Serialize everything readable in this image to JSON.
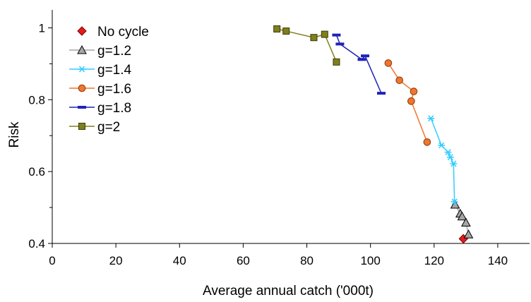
{
  "chart_data": {
    "type": "scatter",
    "title": "",
    "xlabel": "Average annual catch ('000t)",
    "ylabel": "Risk",
    "xlim": [
      0,
      150
    ],
    "ylim": [
      0.4,
      1.05
    ],
    "xticks": [
      0,
      20,
      40,
      60,
      80,
      100,
      120,
      140
    ],
    "xtick_labels": [
      "0",
      "20",
      "40",
      "60",
      "80",
      "100",
      "120",
      "140"
    ],
    "yticks": [
      0.4,
      0.6,
      0.8,
      1.0
    ],
    "ytick_labels": [
      "0.4",
      "0.6",
      "0.8",
      "1"
    ],
    "y_minor_ticks": [
      0.5,
      0.7,
      0.9
    ],
    "grid": false,
    "legend_position": "top-left",
    "series": [
      {
        "name": "No cycle",
        "marker": "diamond",
        "line": false,
        "color": "#e8191b",
        "stroke": "#7a0000",
        "points": [
          [
            129.2,
            0.413
          ]
        ]
      },
      {
        "name": "g=1.2",
        "marker": "triangle",
        "line": true,
        "color": "#a6a6a6",
        "stroke": "#000000",
        "points": [
          [
            126.6,
            0.508
          ],
          [
            128.2,
            0.483
          ],
          [
            128.8,
            0.475
          ],
          [
            130.0,
            0.458
          ],
          [
            130.8,
            0.425
          ]
        ]
      },
      {
        "name": "g=1.4",
        "marker": "asterisk",
        "line": true,
        "color": "#33ccff",
        "stroke": "#33ccff",
        "points": [
          [
            119.0,
            0.748
          ],
          [
            122.3,
            0.673
          ],
          [
            124.4,
            0.654
          ],
          [
            125.1,
            0.64
          ],
          [
            126.1,
            0.622
          ],
          [
            126.4,
            0.516
          ]
        ]
      },
      {
        "name": "g=1.6",
        "marker": "circle",
        "line": true,
        "color": "#f07530",
        "stroke": "#8a3a00",
        "points": [
          [
            105.6,
            0.902
          ],
          [
            109.1,
            0.854
          ],
          [
            113.6,
            0.823
          ],
          [
            112.8,
            0.796
          ],
          [
            117.8,
            0.682
          ]
        ]
      },
      {
        "name": "g=1.8",
        "marker": "dash",
        "line": true,
        "color": "#1f22b8",
        "stroke": "#1f22b8",
        "points": [
          [
            89.3,
            0.98
          ],
          [
            90.4,
            0.955
          ],
          [
            97.3,
            0.912
          ],
          [
            98.3,
            0.922
          ],
          [
            103.4,
            0.818
          ]
        ]
      },
      {
        "name": "g=2",
        "marker": "square",
        "line": true,
        "color": "#7f7f1f",
        "stroke": "#3a3a00",
        "points": [
          [
            70.6,
            0.997
          ],
          [
            73.5,
            0.991
          ],
          [
            82.2,
            0.973
          ],
          [
            85.6,
            0.982
          ],
          [
            89.3,
            0.905
          ]
        ]
      }
    ]
  }
}
